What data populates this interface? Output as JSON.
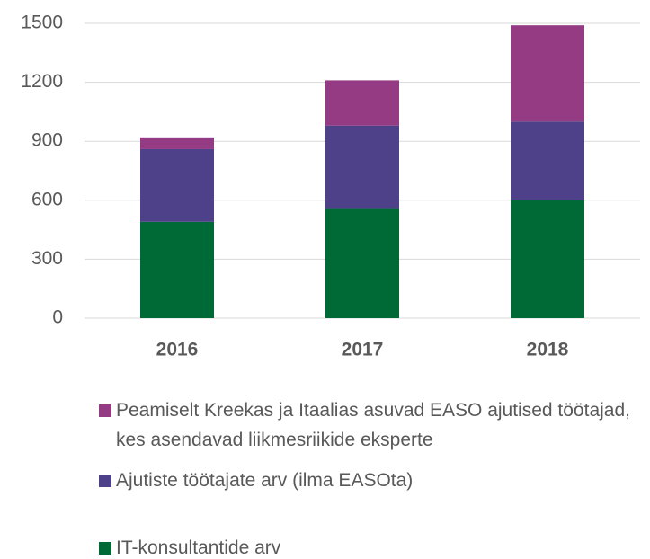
{
  "chart_data": {
    "type": "stacked_bar",
    "categories": [
      "2016",
      "2017",
      "2018"
    ],
    "series": [
      {
        "name": "IT-konsultantide arv",
        "color": "#006a36",
        "values": [
          490,
          560,
          600
        ]
      },
      {
        "name": "Ajutiste töötajate arv (ilma EASOta)",
        "color": "#4e418a",
        "values": [
          370,
          420,
          400
        ]
      },
      {
        "name": "Peamiselt Kreekas ja Itaalias asuvad EASO ajutised töötajad, kes asendavad liikmesriikide eksperte",
        "color": "#943b83",
        "values": [
          60,
          230,
          490
        ]
      }
    ],
    "ylim": [
      0,
      1500
    ],
    "yticks": [
      0,
      300,
      600,
      900,
      1200,
      1500
    ],
    "grid": true,
    "legend": "bottom"
  }
}
